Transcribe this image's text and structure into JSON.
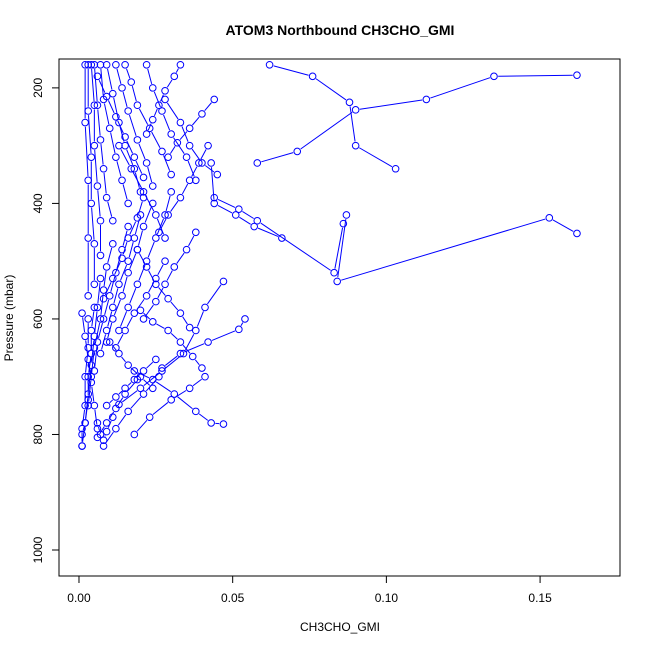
{
  "chart_data": {
    "type": "line",
    "title": "ATOM3 Northbound CH3CHO_GMI",
    "xlabel": "CH3CHO_GMI",
    "ylabel": "Pressure (mbar)",
    "xlim": [
      -0.0065,
      0.176
    ],
    "ylim": [
      1045,
      150
    ],
    "y_reversed": true,
    "grid": false,
    "xticks": [
      0.0,
      0.05,
      0.1,
      0.15
    ],
    "xtick_labels": [
      "0.00",
      "0.05",
      "0.10",
      "0.15"
    ],
    "yticks": [
      200,
      400,
      600,
      800,
      1000
    ],
    "ytick_labels": [
      "200",
      "400",
      "600",
      "800",
      "1000"
    ],
    "series_color": "#0000ff",
    "series": [
      {
        "x": [
          0.087,
          0.084,
          0.153,
          0.162
        ],
        "y": [
          420,
          535,
          425,
          452
        ]
      },
      {
        "x": [
          0.103,
          0.09,
          0.088,
          0.076,
          0.062
        ],
        "y": [
          340,
          300,
          225,
          180,
          160
        ]
      },
      {
        "x": [
          0.162,
          0.135,
          0.113,
          0.09,
          0.071,
          0.058
        ],
        "y": [
          178,
          180,
          220,
          238,
          310,
          330
        ]
      },
      {
        "x": [
          0.086,
          0.083,
          0.058,
          0.052,
          0.044
        ],
        "y": [
          435,
          520,
          430,
          410,
          390
        ]
      },
      {
        "x": [
          0.043,
          0.044,
          0.051,
          0.057,
          0.066
        ],
        "y": [
          330,
          400,
          420,
          440,
          460
        ]
      },
      {
        "x": [
          0.054,
          0.052,
          0.042,
          0.033,
          0.027
        ],
        "y": [
          600,
          618,
          640,
          660,
          685
        ]
      },
      {
        "x": [
          0.047,
          0.043,
          0.038,
          0.031,
          0.024,
          0.018
        ],
        "y": [
          782,
          780,
          760,
          730,
          705,
          690
        ]
      },
      {
        "x": [
          0.047,
          0.041,
          0.038,
          0.034,
          0.027,
          0.02,
          0.013
        ],
        "y": [
          535,
          580,
          620,
          660,
          690,
          720,
          748
        ]
      },
      {
        "x": [
          0.04,
          0.037,
          0.033,
          0.029,
          0.024,
          0.02
        ],
        "y": [
          685,
          665,
          640,
          620,
          605,
          585
        ]
      },
      {
        "x": [
          0.028,
          0.033,
          0.036,
          0.04,
          0.045
        ],
        "y": [
          220,
          260,
          300,
          330,
          350
        ]
      },
      {
        "x": [
          0.022,
          0.024,
          0.027,
          0.03,
          0.035,
          0.038
        ],
        "y": [
          160,
          200,
          240,
          280,
          320,
          360
        ]
      },
      {
        "x": [
          0.038,
          0.035,
          0.031,
          0.028,
          0.025,
          0.021
        ],
        "y": [
          450,
          480,
          510,
          540,
          570,
          600
        ]
      },
      {
        "x": [
          0.025,
          0.021,
          0.018,
          0.015,
          0.012,
          0.009
        ],
        "y": [
          670,
          690,
          705,
          720,
          735,
          750
        ]
      },
      {
        "x": [
          0.015,
          0.017,
          0.019,
          0.023,
          0.027,
          0.03
        ],
        "y": [
          160,
          190,
          230,
          270,
          310,
          350
        ]
      },
      {
        "x": [
          0.03,
          0.028,
          0.025,
          0.022,
          0.019,
          0.016,
          0.013
        ],
        "y": [
          380,
          420,
          460,
          500,
          540,
          580,
          620
        ]
      },
      {
        "x": [
          0.012,
          0.014,
          0.016,
          0.019,
          0.022,
          0.024
        ],
        "y": [
          160,
          200,
          240,
          290,
          330,
          370
        ]
      },
      {
        "x": [
          0.024,
          0.021,
          0.019,
          0.016,
          0.014,
          0.011,
          0.009
        ],
        "y": [
          400,
          440,
          480,
          520,
          560,
          600,
          640
        ]
      },
      {
        "x": [
          0.009,
          0.011,
          0.013,
          0.015,
          0.018,
          0.02
        ],
        "y": [
          160,
          210,
          260,
          300,
          340,
          380
        ]
      },
      {
        "x": [
          0.02,
          0.018,
          0.016,
          0.013,
          0.011,
          0.009,
          0.007
        ],
        "y": [
          420,
          460,
          500,
          540,
          580,
          620,
          660
        ]
      },
      {
        "x": [
          0.007,
          0.008,
          0.01,
          0.012,
          0.014,
          0.016
        ],
        "y": [
          160,
          220,
          270,
          320,
          360,
          400
        ]
      },
      {
        "x": [
          0.016,
          0.014,
          0.012,
          0.01,
          0.008,
          0.006,
          0.005
        ],
        "y": [
          440,
          480,
          520,
          560,
          600,
          640,
          690
        ]
      },
      {
        "x": [
          0.005,
          0.006,
          0.007,
          0.008,
          0.009,
          0.011
        ],
        "y": [
          160,
          230,
          290,
          340,
          390,
          430
        ]
      },
      {
        "x": [
          0.011,
          0.009,
          0.008,
          0.007,
          0.005,
          0.004,
          0.003
        ],
        "y": [
          470,
          510,
          550,
          600,
          650,
          700,
          750
        ]
      },
      {
        "x": [
          0.004,
          0.005,
          0.005,
          0.006,
          0.007,
          0.007
        ],
        "y": [
          160,
          230,
          300,
          370,
          430,
          490
        ]
      },
      {
        "x": [
          0.007,
          0.006,
          0.005,
          0.004,
          0.003,
          0.002,
          0.001
        ],
        "y": [
          530,
          580,
          630,
          680,
          730,
          780,
          820
        ]
      },
      {
        "x": [
          0.003,
          0.003,
          0.004,
          0.004,
          0.005,
          0.005
        ],
        "y": [
          160,
          240,
          320,
          400,
          470,
          540
        ]
      },
      {
        "x": [
          0.005,
          0.004,
          0.004,
          0.003,
          0.003,
          0.002,
          0.001
        ],
        "y": [
          580,
          620,
          660,
          700,
          740,
          780,
          800
        ]
      },
      {
        "x": [
          0.002,
          0.002,
          0.003,
          0.003,
          0.003
        ],
        "y": [
          160,
          260,
          360,
          460,
          560
        ]
      },
      {
        "x": [
          0.003,
          0.003,
          0.002,
          0.002,
          0.001,
          0.001
        ],
        "y": [
          600,
          650,
          700,
          750,
          790,
          820
        ]
      },
      {
        "x": [
          0.018,
          0.023,
          0.03,
          0.036,
          0.041
        ],
        "y": [
          800,
          770,
          740,
          720,
          700
        ]
      },
      {
        "x": [
          0.008,
          0.012,
          0.016,
          0.021,
          0.026
        ],
        "y": [
          820,
          790,
          760,
          730,
          700
        ]
      },
      {
        "x": [
          0.006,
          0.009,
          0.012,
          0.015,
          0.019
        ],
        "y": [
          805,
          780,
          755,
          730,
          705
        ]
      },
      {
        "x": [
          0.033,
          0.031,
          0.028,
          0.026,
          0.024,
          0.022
        ],
        "y": [
          160,
          180,
          205,
          230,
          255,
          280
        ]
      },
      {
        "x": [
          0.044,
          0.04,
          0.036,
          0.032,
          0.029
        ],
        "y": [
          220,
          245,
          270,
          295,
          320
        ]
      },
      {
        "x": [
          0.042,
          0.039,
          0.036,
          0.033,
          0.029,
          0.026
        ],
        "y": [
          300,
          330,
          360,
          390,
          420,
          450
        ]
      },
      {
        "x": [
          0.019,
          0.022,
          0.025,
          0.029,
          0.033,
          0.036
        ],
        "y": [
          480,
          510,
          540,
          565,
          590,
          615
        ]
      },
      {
        "x": [
          0.01,
          0.013,
          0.016,
          0.02,
          0.024
        ],
        "y": [
          640,
          660,
          680,
          700,
          720
        ]
      },
      {
        "x": [
          0.013,
          0.017,
          0.021,
          0.025,
          0.028
        ],
        "y": [
          300,
          340,
          380,
          420,
          460
        ]
      },
      {
        "x": [
          0.028,
          0.025,
          0.022,
          0.018,
          0.015,
          0.012
        ],
        "y": [
          500,
          530,
          560,
          590,
          620,
          650
        ]
      },
      {
        "x": [
          0.006,
          0.009,
          0.012,
          0.015,
          0.018,
          0.021
        ],
        "y": [
          180,
          215,
          250,
          285,
          320,
          355
        ]
      },
      {
        "x": [
          0.021,
          0.019,
          0.016,
          0.014,
          0.011,
          0.008
        ],
        "y": [
          390,
          425,
          460,
          495,
          530,
          565
        ]
      },
      {
        "x": [
          0.001,
          0.002,
          0.003,
          0.004,
          0.005,
          0.006
        ],
        "y": [
          590,
          630,
          670,
          710,
          750,
          790
        ]
      },
      {
        "x": [
          0.006,
          0.007,
          0.008,
          0.009,
          0.011
        ],
        "y": [
          780,
          800,
          810,
          795,
          770
        ]
      }
    ]
  }
}
